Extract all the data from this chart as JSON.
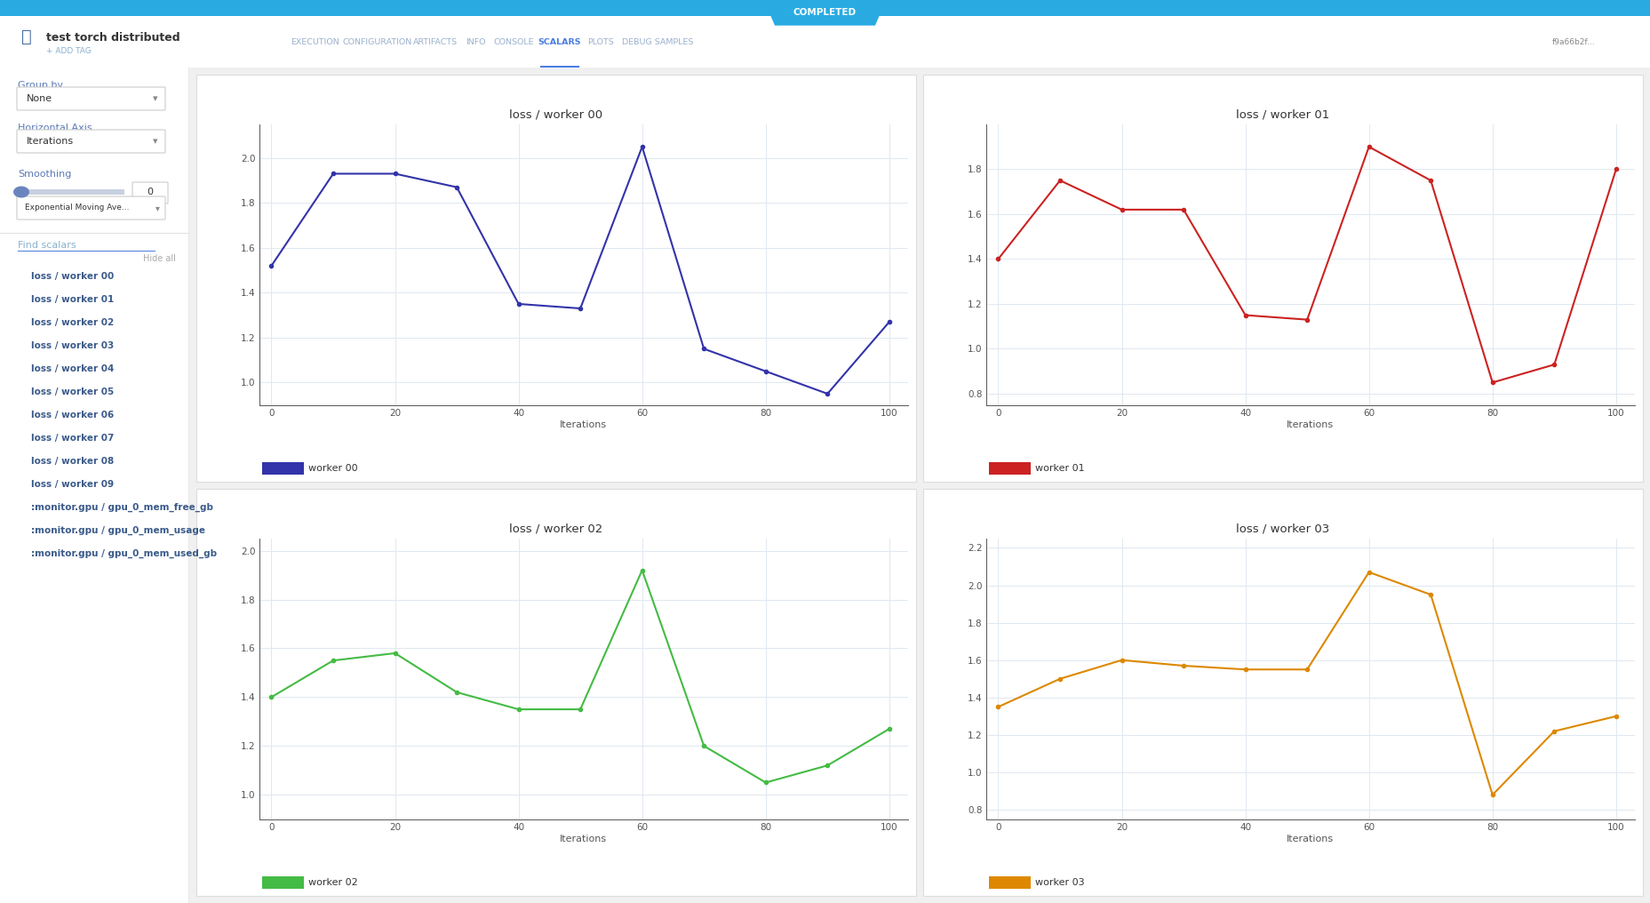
{
  "workers": [
    "worker 00",
    "worker 01",
    "worker 02",
    "worker 03"
  ],
  "colors": [
    "#3333aa",
    "#cc2222",
    "#44bb44",
    "#dd8800"
  ],
  "x": [
    0,
    10,
    20,
    30,
    40,
    50,
    60,
    70,
    80,
    90,
    100
  ],
  "worker_00_y": [
    1.52,
    1.93,
    1.93,
    1.87,
    1.35,
    1.33,
    2.05,
    1.15,
    1.05,
    0.95,
    1.27
  ],
  "worker_01_y": [
    1.4,
    1.75,
    1.62,
    1.62,
    1.15,
    1.13,
    1.9,
    1.75,
    0.85,
    0.93,
    1.8
  ],
  "worker_02_y": [
    1.4,
    1.55,
    1.58,
    1.42,
    1.35,
    1.35,
    1.92,
    1.2,
    1.05,
    1.12,
    1.27
  ],
  "worker_03_y": [
    1.35,
    1.5,
    1.6,
    1.57,
    1.55,
    1.55,
    2.07,
    1.95,
    0.88,
    1.22,
    1.3
  ],
  "xlabel": "Iterations",
  "sidebar_items": [
    "loss / worker 00",
    "loss / worker 01",
    "loss / worker 02",
    "loss / worker 03",
    "loss / worker 04",
    "loss / worker 05",
    "loss / worker 06",
    "loss / worker 07",
    "loss / worker 08",
    "loss / worker 09",
    ":monitor.gpu / gpu_0_mem_free_gb",
    ":monitor.gpu / gpu_0_mem_usage",
    ":monitor.gpu / gpu_0_mem_used_gb"
  ],
  "tab_labels": [
    "EXECUTION",
    "CONFIGURATION",
    "ARTIFACTS",
    "INFO",
    "CONSOLE",
    "SCALARS",
    "PLOTS",
    "DEBUG SAMPLES"
  ],
  "active_tab": "SCALARS",
  "yticks_00": [
    1.0,
    1.2,
    1.4,
    1.6,
    1.8,
    2.0
  ],
  "yticks_01": [
    0.8,
    1.0,
    1.2,
    1.4,
    1.6,
    1.8
  ],
  "yticks_02": [
    1.0,
    1.2,
    1.4,
    1.6,
    1.8,
    2.0
  ],
  "yticks_03": [
    0.8,
    1.0,
    1.2,
    1.4,
    1.6,
    1.8,
    2.0,
    2.2
  ],
  "ylim_00": [
    0.9,
    2.15
  ],
  "ylim_01": [
    0.75,
    2.0
  ],
  "ylim_02": [
    0.9,
    2.05
  ],
  "ylim_03": [
    0.75,
    2.25
  ],
  "xticks": [
    0,
    20,
    40,
    60,
    80,
    100
  ],
  "header_color": "#29abe2",
  "completed_bg": "#29abe2",
  "active_tab_color": "#4a7de2",
  "inactive_tab_color": "#9ab0cc",
  "sidebar_text_color": "#5a7ab5",
  "label_text_color": "#5a7ab5"
}
